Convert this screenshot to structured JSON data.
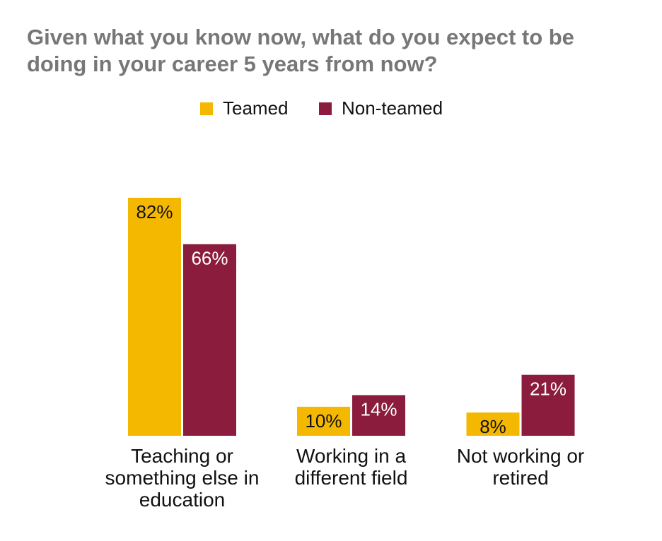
{
  "chart_data": {
    "type": "bar",
    "title": "Given what you know now, what do you expect to be doing in your career 5 years from now?",
    "categories": [
      "Teaching or something else in education",
      "Working in a different field",
      "Not working or retired"
    ],
    "series": [
      {
        "name": "Teamed",
        "color": "#f5b800",
        "values": [
          82,
          10,
          8
        ],
        "value_labels": [
          "82%",
          "10%",
          "8%"
        ],
        "label_color": "#111111"
      },
      {
        "name": "Non-teamed",
        "color": "#8b1c3e",
        "values": [
          66,
          14,
          21
        ],
        "value_labels": [
          "66%",
          "14%",
          "21%"
        ],
        "label_color": "#ffffff"
      }
    ],
    "ylim": [
      0,
      100
    ]
  }
}
